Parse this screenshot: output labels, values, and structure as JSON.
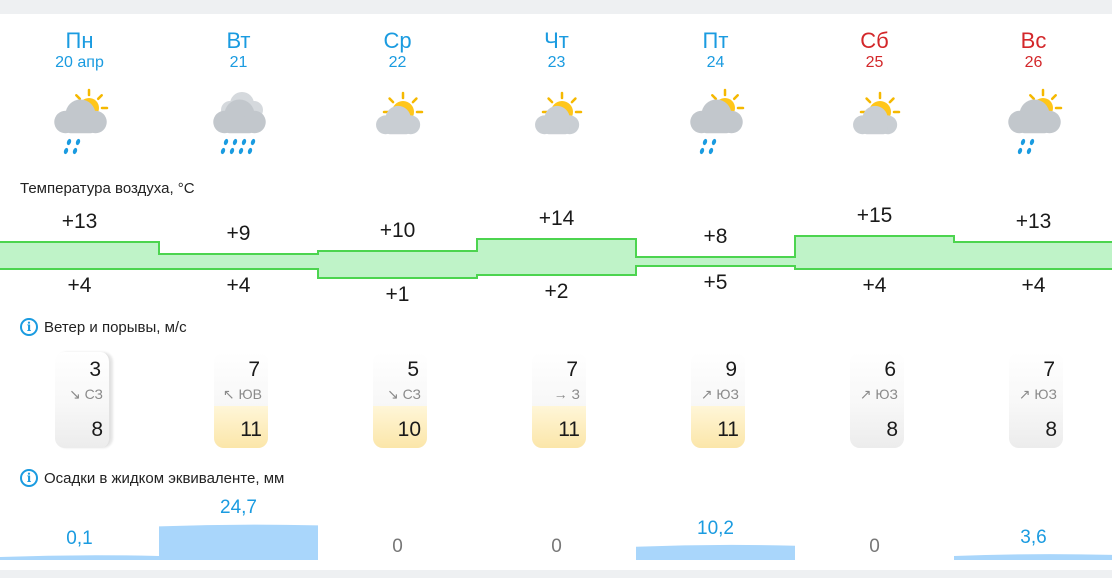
{
  "days": [
    {
      "name": "Пн",
      "date": "20 апр",
      "weekend": false,
      "icon": "partly-cloudy-rain-icon",
      "tmax": 13,
      "tmax_label": "+13",
      "tmin": 4,
      "tmin_label": "+4",
      "wind": "3",
      "wind_arrow": "↘",
      "wind_dir": "СЗ",
      "gust": "8",
      "gust_high": false,
      "precip": 0.1,
      "precip_label": "0,1"
    },
    {
      "name": "Вт",
      "date": "21",
      "weekend": false,
      "icon": "cloudy-heavy-rain-icon",
      "tmax": 9,
      "tmax_label": "+9",
      "tmin": 4,
      "tmin_label": "+4",
      "wind": "7",
      "wind_arrow": "↖",
      "wind_dir": "ЮВ",
      "gust": "11",
      "gust_high": true,
      "precip": 24.7,
      "precip_label": "24,7"
    },
    {
      "name": "Ср",
      "date": "22",
      "weekend": false,
      "icon": "partly-cloudy-icon",
      "tmax": 10,
      "tmax_label": "+10",
      "tmin": 1,
      "tmin_label": "+1",
      "wind": "5",
      "wind_arrow": "↘",
      "wind_dir": "СЗ",
      "gust": "10",
      "gust_high": true,
      "precip": 0,
      "precip_label": "0"
    },
    {
      "name": "Чт",
      "date": "23",
      "weekend": false,
      "icon": "partly-cloudy-icon",
      "tmax": 14,
      "tmax_label": "+14",
      "tmin": 2,
      "tmin_label": "+2",
      "wind": "7",
      "wind_arrow": "→",
      "wind_dir": "З",
      "gust": "11",
      "gust_high": true,
      "precip": 0,
      "precip_label": "0"
    },
    {
      "name": "Пт",
      "date": "24",
      "weekend": false,
      "icon": "partly-cloudy-rain-icon",
      "tmax": 8,
      "tmax_label": "+8",
      "tmin": 5,
      "tmin_label": "+5",
      "wind": "9",
      "wind_arrow": "↗",
      "wind_dir": "ЮЗ",
      "gust": "11",
      "gust_high": true,
      "precip": 10.2,
      "precip_label": "10,2"
    },
    {
      "name": "Сб",
      "date": "25",
      "weekend": true,
      "icon": "partly-cloudy-icon",
      "tmax": 15,
      "tmax_label": "+15",
      "tmin": 4,
      "tmin_label": "+4",
      "wind": "6",
      "wind_arrow": "↗",
      "wind_dir": "ЮЗ",
      "gust": "8",
      "gust_high": false,
      "precip": 0,
      "precip_label": "0"
    },
    {
      "name": "Вс",
      "date": "26",
      "weekend": true,
      "icon": "partly-cloudy-rain-icon",
      "tmax": 13,
      "tmax_label": "+13",
      "tmin": 4,
      "tmin_label": "+4",
      "wind": "7",
      "wind_arrow": "↗",
      "wind_dir": "ЮЗ",
      "gust": "8",
      "gust_high": false,
      "precip": 3.6,
      "precip_label": "3,6"
    }
  ],
  "sections": {
    "temperature_title": "Температура воздуха, °C",
    "wind_title": "Ветер и порывы, м/с",
    "precip_title": "Осадки в жидком эквиваленте, мм"
  },
  "colors": {
    "weekday": "#1a9be0",
    "weekend": "#d3272a",
    "temp_fill": "#bff3c8",
    "temp_stroke": "#4cd44f",
    "precip_fill": "#a9d6fb"
  }
}
